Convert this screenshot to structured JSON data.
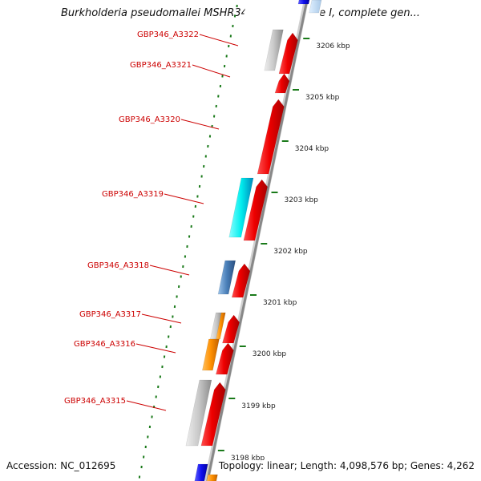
{
  "title": "Burkholderia pseudomallei MSHR346 chromosome I, complete gen...",
  "footer": {
    "accession": "Accession: NC_012695",
    "summary": "Topology: linear; Length: 4,098,576 bp; Genes: 4,262"
  },
  "colors": {
    "label": "#cc0000",
    "forward_gene": "#ee0000",
    "backbone": "#888888",
    "tick": "#1a7a1a"
  },
  "ticks": [
    {
      "label": "3206 kbp"
    },
    {
      "label": "3205 kbp"
    },
    {
      "label": "3204 kbp"
    },
    {
      "label": "3203 kbp"
    },
    {
      "label": "3202 kbp"
    },
    {
      "label": "3201 kbp"
    },
    {
      "label": "3200 kbp"
    },
    {
      "label": "3199 kbp"
    },
    {
      "label": "3198 kbp"
    }
  ],
  "gene_labels": [
    {
      "name": "GBP346_A3322"
    },
    {
      "name": "GBP346_A3321"
    },
    {
      "name": "GBP346_A3320"
    },
    {
      "name": "GBP346_A3319"
    },
    {
      "name": "GBP346_A3318"
    },
    {
      "name": "GBP346_A3317"
    },
    {
      "name": "GBP346_A3316"
    },
    {
      "name": "GBP346_A3315"
    }
  ]
}
